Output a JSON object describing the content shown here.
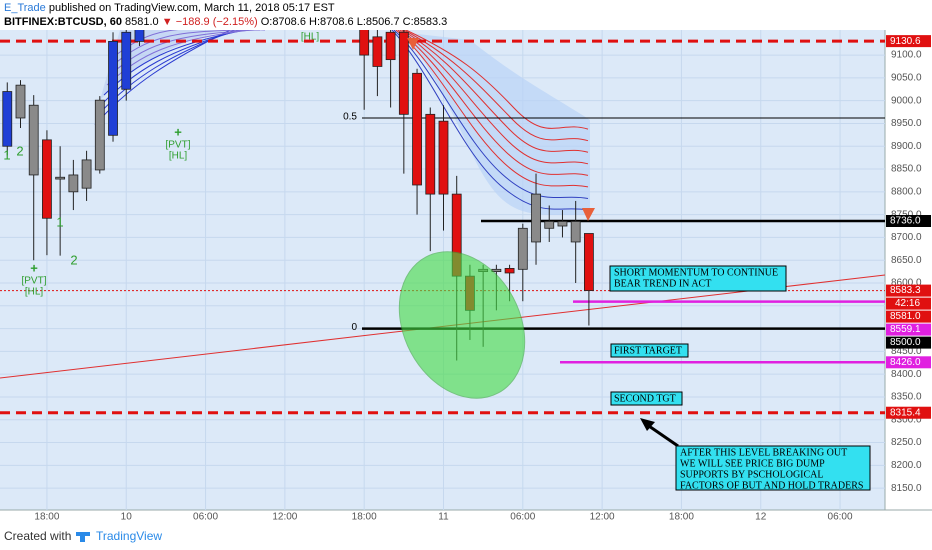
{
  "header": {
    "author": "E_Trade",
    "published": "published on TradingView.com, March 11, 2018 05:17 EST",
    "symbol": "BITFINEX:BTCUSD, 60",
    "last": "8581.0",
    "change": "▼ −188.9 (−2.15%)",
    "ohlc": [
      "O:8708.6",
      "H:8708.6",
      "L:8506.7",
      "C:8583.3"
    ]
  },
  "chart_data": {
    "type": "candlestick",
    "x": [
      15,
      16,
      17,
      18,
      19,
      20,
      21,
      22,
      23,
      24,
      25,
      42,
      43,
      44,
      45,
      46,
      47,
      48,
      49,
      50,
      51,
      52,
      53,
      54,
      55,
      56,
      57,
      58,
      59
    ],
    "open": [
      8900,
      8962,
      8990,
      8914,
      8832,
      8800,
      8808,
      8848,
      8924,
      9025,
      9130,
      9160,
      9140,
      9150,
      9150,
      9060,
      8970,
      8955,
      8795,
      8615,
      8625,
      8625,
      8632,
      8630,
      8690,
      8720,
      8725,
      8690,
      8708.6
    ],
    "high": [
      9040,
      9045,
      9012,
      8935,
      8900,
      8870,
      8890,
      9010,
      9150,
      9170,
      9180,
      9170,
      9160,
      9165,
      9160,
      9070,
      8985,
      8990,
      8835,
      8640,
      8640,
      8640,
      8640,
      8730,
      8840,
      8770,
      8760,
      8780,
      8708.6
    ],
    "low": [
      8880,
      8940,
      8650,
      8661,
      8660,
      8760,
      8780,
      8840,
      8910,
      9000,
      9120,
      8980,
      9010,
      8985,
      8840,
      8750,
      8670,
      8715,
      8430,
      8475,
      8460,
      8540,
      8560,
      8560,
      8640,
      8690,
      8700,
      8600,
      8506.7
    ],
    "close": [
      9020,
      9034,
      8837,
      8742,
      8828,
      8837,
      8870,
      9001,
      9130,
      9150,
      9170,
      9100,
      9075,
      9090,
      8970,
      8815,
      8795,
      8795,
      8615,
      8540,
      8630,
      8630,
      8622,
      8720,
      8795,
      8735,
      8735,
      8735,
      8583.3
    ],
    "colors": [
      "#1f3fd6",
      "#8a8a8a",
      "#8a8a8a",
      "#e01010",
      "#8a8a8a",
      "#8a8a8a",
      "#8a8a8a",
      "#8a8a8a",
      "#1f3fd6",
      "#1f3fd6",
      "#1f3fd6",
      "#e01010",
      "#e01010",
      "#e01010",
      "#e01010",
      "#e01010",
      "#e01010",
      "#e01010",
      "#e01010",
      "#e01010",
      "#8a8a8a",
      "#8a8a8a",
      "#e01010",
      "#8a8a8a",
      "#8a8a8a",
      "#8a8a8a",
      "#8a8a8a",
      "#8a8a8a",
      "#e01010"
    ],
    "xlim": [
      14.45,
      81.4
    ],
    "xticks": [
      {
        "value": 18,
        "label": "18:00"
      },
      {
        "value": 24,
        "label": "10"
      },
      {
        "value": 30,
        "label": "06:00"
      },
      {
        "value": 36,
        "label": "12:00"
      },
      {
        "value": 42,
        "label": "18:00"
      },
      {
        "value": 48,
        "label": "11"
      },
      {
        "value": 54,
        "label": "06:00"
      },
      {
        "value": 60,
        "label": "12:00"
      },
      {
        "value": 66,
        "label": "18:00"
      },
      {
        "value": 72,
        "label": "12"
      },
      {
        "value": 78,
        "label": "06:00"
      }
    ],
    "ylim": [
      8102,
      9155
    ],
    "yticks": [
      {
        "value": 9100,
        "label": "9100.0"
      },
      {
        "value": 9050,
        "label": "9050.0"
      },
      {
        "value": 9000,
        "label": "9000.0"
      },
      {
        "value": 8950,
        "label": "8950.0"
      },
      {
        "value": 8900,
        "label": "8900.0"
      },
      {
        "value": 8850,
        "label": "8850.0"
      },
      {
        "value": 8800,
        "label": "8800.0"
      },
      {
        "value": 8750,
        "label": "8750.0"
      },
      {
        "value": 8700,
        "label": "8700.0"
      },
      {
        "value": 8650,
        "label": "8650.0"
      },
      {
        "value": 8600,
        "label": "8600.0"
      },
      {
        "value": 8550,
        "label": "8550.0"
      },
      {
        "value": 8500,
        "label": "8500.0"
      },
      {
        "value": 8450,
        "label": "8450.0"
      },
      {
        "value": 8400,
        "label": "8400.0"
      },
      {
        "value": 8350,
        "label": "8350.0"
      },
      {
        "value": 8300,
        "label": "8300.0"
      },
      {
        "value": 8250,
        "label": "8250.0"
      },
      {
        "value": 8200,
        "label": "8200.0"
      },
      {
        "value": 8150,
        "label": "8150.0"
      }
    ],
    "grid": true,
    "levels": [
      {
        "value": 9130.6,
        "label": "9130.6",
        "color": "#e01010",
        "style": "dashed"
      },
      {
        "value": 8736,
        "label": "8736.0",
        "color": "#000000",
        "style": "solid"
      },
      {
        "value": 8583.3,
        "label": "8583.3",
        "color": "#e01010",
        "style": "dotted"
      },
      {
        "value": 8581,
        "label": "8581.0",
        "color": "#e01010",
        "style": "none"
      },
      {
        "value": 8559.1,
        "label": "8559.1",
        "color": "#e020e0",
        "style": "solid"
      },
      {
        "value": 8500,
        "label": "8500.0",
        "color": "#000000",
        "style": "solid"
      },
      {
        "value": 8426,
        "label": "8426.0",
        "color": "#e020e0",
        "style": "solid"
      },
      {
        "value": 8315.4,
        "label": "8315.4",
        "color": "#e01010",
        "style": "dashed"
      }
    ],
    "countdown": "42:16",
    "fib": [
      {
        "value": 8962,
        "label": "0.5"
      },
      {
        "value": 8500,
        "label": "0"
      }
    ],
    "annotations": [
      [
        "SHORT MOMENTUM TO CONTINUE",
        "BEAR TREND IN ACT"
      ],
      [
        "FIRST TARGET"
      ],
      [
        "SECOND TGT"
      ],
      [
        "AFTER THIS LEVEL BREAKING OUT",
        "WE WILL SEE PRICE BIG DUMP",
        "SUPPORTS BY PSCHOLOGICAL",
        "FACTORS OF BUT AND HOLD TRADERS"
      ]
    ],
    "markers": [
      "[PVT]",
      "[HL]",
      "+",
      "1",
      "2",
      "1",
      "2",
      "[PVT]",
      "[HL]",
      "+",
      "[HL]"
    ]
  },
  "footer": {
    "created": "Created with",
    "brand": "TradingView"
  }
}
